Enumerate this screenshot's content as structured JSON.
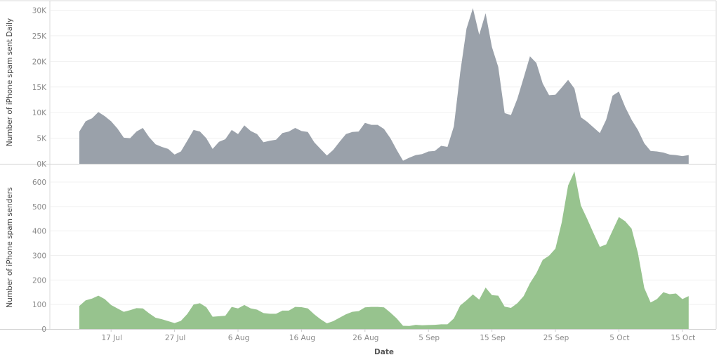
{
  "chart_data": [
    {
      "type": "area",
      "ylabel": "Number of iPhone spam sent Daily",
      "xlabel": "",
      "color": "#9aa1aa",
      "ylim": [
        0,
        31000
      ],
      "yticks": [
        0,
        5000,
        10000,
        15000,
        20000,
        25000,
        30000
      ],
      "ytick_labels": [
        "0K",
        "5K",
        "10K",
        "15K",
        "20K",
        "25K",
        "30K"
      ],
      "grid": true,
      "values": [
        6300,
        8300,
        8900,
        10100,
        9300,
        8300,
        6900,
        5100,
        5000,
        6300,
        7000,
        5200,
        3800,
        3300,
        2900,
        1800,
        2400,
        4500,
        6600,
        6300,
        5000,
        2900,
        4300,
        4800,
        6600,
        5800,
        7500,
        6400,
        5800,
        4200,
        4500,
        4700,
        6000,
        6300,
        7000,
        6400,
        6200,
        4200,
        2900,
        1600,
        2700,
        4300,
        5800,
        6200,
        6300,
        8000,
        7600,
        7600,
        6800,
        5000,
        2700,
        600,
        1200,
        1700,
        1900,
        2400,
        2500,
        3500,
        3300,
        7300,
        17800,
        26400,
        30400,
        25200,
        29400,
        22800,
        18900,
        9900,
        9500,
        12700,
        16800,
        21000,
        19700,
        15700,
        13400,
        13500,
        14900,
        16400,
        14700,
        9100,
        8200,
        7100,
        6000,
        8600,
        13300,
        14100,
        11100,
        8600,
        6600,
        4000,
        2500,
        2400,
        2200,
        1800,
        1700,
        1500,
        1700
      ]
    },
    {
      "type": "area",
      "ylabel": "Number of iPhone spam senders",
      "xlabel": "Date",
      "color": "#97c38e",
      "ylim": [
        0,
        660
      ],
      "yticks": [
        0,
        100,
        200,
        300,
        400,
        500,
        600
      ],
      "ytick_labels": [
        "0",
        "100",
        "200",
        "300",
        "400",
        "500",
        "600"
      ],
      "grid": true,
      "values": [
        94,
        117,
        124,
        136,
        122,
        98,
        84,
        70,
        77,
        85,
        84,
        64,
        46,
        40,
        32,
        24,
        33,
        61,
        100,
        105,
        89,
        50,
        52,
        54,
        90,
        84,
        98,
        84,
        79,
        65,
        62,
        62,
        75,
        75,
        90,
        89,
        84,
        60,
        40,
        23,
        32,
        46,
        60,
        70,
        73,
        88,
        90,
        90,
        88,
        67,
        43,
        13,
        12,
        17,
        15,
        16,
        17,
        19,
        19,
        43,
        96,
        117,
        141,
        120,
        169,
        138,
        136,
        91,
        86,
        105,
        134,
        187,
        228,
        282,
        299,
        328,
        435,
        586,
        643,
        505,
        450,
        392,
        335,
        345,
        402,
        457,
        440,
        410,
        311,
        167,
        108,
        122,
        150,
        142,
        145,
        122,
        134
      ]
    }
  ],
  "x": {
    "title": "Date",
    "dates": [
      "12 Jul",
      "13 Jul",
      "14 Jul",
      "15 Jul",
      "16 Jul",
      "17 Jul",
      "18 Jul",
      "19 Jul",
      "20 Jul",
      "21 Jul",
      "22 Jul",
      "23 Jul",
      "24 Jul",
      "25 Jul",
      "26 Jul",
      "27 Jul",
      "28 Jul",
      "29 Jul",
      "30 Jul",
      "31 Jul",
      "1 Aug",
      "2 Aug",
      "3 Aug",
      "4 Aug",
      "5 Aug",
      "6 Aug",
      "7 Aug",
      "8 Aug",
      "9 Aug",
      "10 Aug",
      "11 Aug",
      "12 Aug",
      "13 Aug",
      "14 Aug",
      "15 Aug",
      "16 Aug",
      "17 Aug",
      "18 Aug",
      "19 Aug",
      "20 Aug",
      "21 Aug",
      "22 Aug",
      "23 Aug",
      "24 Aug",
      "25 Aug",
      "26 Aug",
      "27 Aug",
      "28 Aug",
      "29 Aug",
      "30 Aug",
      "31 Aug",
      "1 Sep",
      "2 Sep",
      "3 Sep",
      "4 Sep",
      "5 Sep",
      "6 Sep",
      "7 Sep",
      "8 Sep",
      "9 Sep",
      "10 Sep",
      "11 Sep",
      "12 Sep",
      "13 Sep",
      "14 Sep",
      "15 Sep",
      "16 Sep",
      "17 Sep",
      "18 Sep",
      "19 Sep",
      "20 Sep",
      "21 Sep",
      "22 Sep",
      "23 Sep",
      "24 Sep",
      "25 Sep",
      "26 Sep",
      "27 Sep",
      "28 Sep",
      "29 Sep",
      "30 Sep",
      "1 Oct",
      "2 Oct",
      "3 Oct",
      "4 Oct",
      "5 Oct",
      "6 Oct",
      "7 Oct",
      "8 Oct",
      "9 Oct",
      "10 Oct",
      "11 Oct",
      "12 Oct",
      "13 Oct",
      "14 Oct",
      "15 Oct",
      "16 Oct"
    ],
    "tick_labels": [
      "17 Jul",
      "27 Jul",
      "6 Aug",
      "16 Aug",
      "26 Aug",
      "5 Sep",
      "15 Sep",
      "25 Sep",
      "5 Oct",
      "15 Oct"
    ]
  }
}
